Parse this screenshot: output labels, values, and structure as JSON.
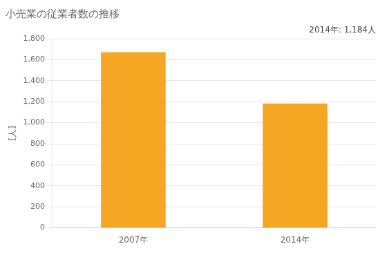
{
  "chart_data": {
    "type": "bar",
    "title": "小売業の従業者数の推移",
    "ylabel": "[人]",
    "annotation": "2014年: 1,184人",
    "categories": [
      "2007年",
      "2014年"
    ],
    "values": [
      1671,
      1184
    ],
    "color": "#F5A623",
    "ylim": [
      0,
      1800
    ],
    "yticks": [
      0,
      200,
      400,
      600,
      800,
      {
        "value": 1000,
        "label": "1,000"
      },
      {
        "value": 1200,
        "label": "1,200"
      },
      {
        "value": 1400,
        "label": "1,400"
      },
      {
        "value": 1600,
        "label": "1,600"
      },
      {
        "value": 1800,
        "label": "1,800"
      }
    ],
    "grid": true
  }
}
